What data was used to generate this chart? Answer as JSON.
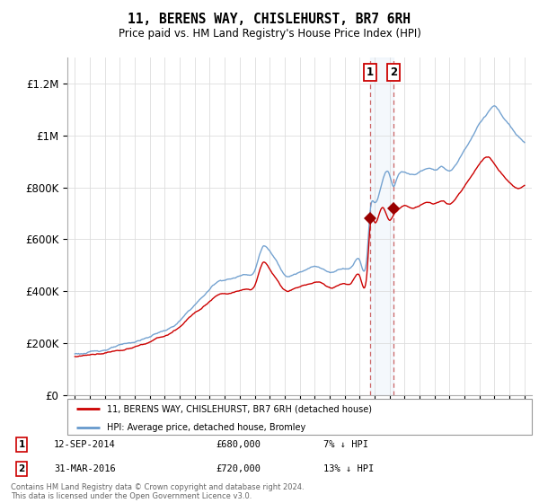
{
  "title": "11, BERENS WAY, CHISLEHURST, BR7 6RH",
  "subtitle": "Price paid vs. HM Land Registry's House Price Index (HPI)",
  "legend_line1": "11, BERENS WAY, CHISLEHURST, BR7 6RH (detached house)",
  "legend_line2": "HPI: Average price, detached house, Bromley",
  "transactions": [
    {
      "num": 1,
      "date": "12-SEP-2014",
      "price": 680000,
      "rel": "7% ↓ HPI"
    },
    {
      "num": 2,
      "date": "31-MAR-2016",
      "price": 720000,
      "rel": "13% ↓ HPI"
    }
  ],
  "footer": "Contains HM Land Registry data © Crown copyright and database right 2024.\nThis data is licensed under the Open Government Licence v3.0.",
  "hpi_color": "#6699CC",
  "price_color": "#CC0000",
  "marker_color": "#990000",
  "transaction_line_color": "#CC6666",
  "transaction_box_color": "#CC0000",
  "ylim": [
    0,
    1300000
  ],
  "yticks": [
    0,
    200000,
    400000,
    600000,
    800000,
    1000000,
    1200000
  ],
  "ytick_labels": [
    "£0",
    "£200K",
    "£400K",
    "£600K",
    "£800K",
    "£1M",
    "£1.2M"
  ],
  "xlim_start": 1994.5,
  "xlim_end": 2025.5,
  "transaction1_x": 2014.71,
  "transaction2_x": 2016.25,
  "hpi_years": [
    1995.0,
    1995.5,
    1996.0,
    1996.5,
    1997.0,
    1997.5,
    1998.0,
    1998.5,
    1999.0,
    1999.5,
    2000.0,
    2000.5,
    2001.0,
    2001.5,
    2002.0,
    2002.5,
    2003.0,
    2003.5,
    2004.0,
    2004.5,
    2005.0,
    2005.5,
    2006.0,
    2006.5,
    2007.0,
    2007.5,
    2008.0,
    2008.5,
    2009.0,
    2009.5,
    2010.0,
    2010.5,
    2011.0,
    2011.5,
    2012.0,
    2012.5,
    2013.0,
    2013.5,
    2014.0,
    2014.5,
    2014.71,
    2015.0,
    2015.5,
    2016.0,
    2016.25,
    2016.5,
    2017.0,
    2017.5,
    2018.0,
    2018.5,
    2019.0,
    2019.5,
    2020.0,
    2020.5,
    2021.0,
    2021.5,
    2022.0,
    2022.5,
    2023.0,
    2023.5,
    2024.0,
    2024.5,
    2025.0
  ],
  "hpi_values": [
    158000,
    160000,
    163000,
    168000,
    175000,
    183000,
    188000,
    193000,
    200000,
    210000,
    220000,
    235000,
    245000,
    258000,
    280000,
    310000,
    340000,
    370000,
    400000,
    430000,
    440000,
    445000,
    455000,
    465000,
    480000,
    570000,
    555000,
    510000,
    465000,
    470000,
    480000,
    490000,
    500000,
    495000,
    480000,
    490000,
    500000,
    510000,
    535000,
    560000,
    731000,
    760000,
    840000,
    870000,
    828000,
    860000,
    880000,
    870000,
    880000,
    890000,
    885000,
    895000,
    880000,
    910000,
    960000,
    1010000,
    1060000,
    1100000,
    1130000,
    1090000,
    1050000,
    1010000,
    980000
  ],
  "price_years": [
    1995.0,
    1995.5,
    1996.0,
    1996.5,
    1997.0,
    1997.5,
    1998.0,
    1998.5,
    1999.0,
    1999.5,
    2000.0,
    2000.5,
    2001.0,
    2001.5,
    2002.0,
    2002.5,
    2003.0,
    2003.5,
    2004.0,
    2004.5,
    2005.0,
    2005.5,
    2006.0,
    2006.5,
    2007.0,
    2007.5,
    2008.0,
    2008.5,
    2009.0,
    2009.5,
    2010.0,
    2010.5,
    2011.0,
    2011.5,
    2012.0,
    2012.5,
    2013.0,
    2013.5,
    2014.0,
    2014.5,
    2014.71,
    2015.0,
    2015.5,
    2016.0,
    2016.25,
    2016.5,
    2017.0,
    2017.5,
    2018.0,
    2018.5,
    2019.0,
    2019.5,
    2020.0,
    2020.5,
    2021.0,
    2021.5,
    2022.0,
    2022.5,
    2023.0,
    2023.5,
    2024.0,
    2024.5,
    2025.0
  ],
  "price_values": [
    148000,
    149000,
    152000,
    156000,
    162000,
    169000,
    174000,
    178000,
    184000,
    193000,
    202000,
    215000,
    223000,
    235000,
    255000,
    282000,
    308000,
    336000,
    362000,
    390000,
    398000,
    402000,
    410000,
    418000,
    430000,
    515000,
    497000,
    455000,
    415000,
    420000,
    428000,
    438000,
    447000,
    443000,
    428000,
    437000,
    447000,
    456000,
    478000,
    500000,
    680000,
    690000,
    750000,
    700000,
    720000,
    735000,
    755000,
    748000,
    758000,
    768000,
    763000,
    773000,
    760000,
    786000,
    828000,
    870000,
    913000,
    940000,
    910000,
    870000,
    840000,
    820000,
    830000
  ]
}
